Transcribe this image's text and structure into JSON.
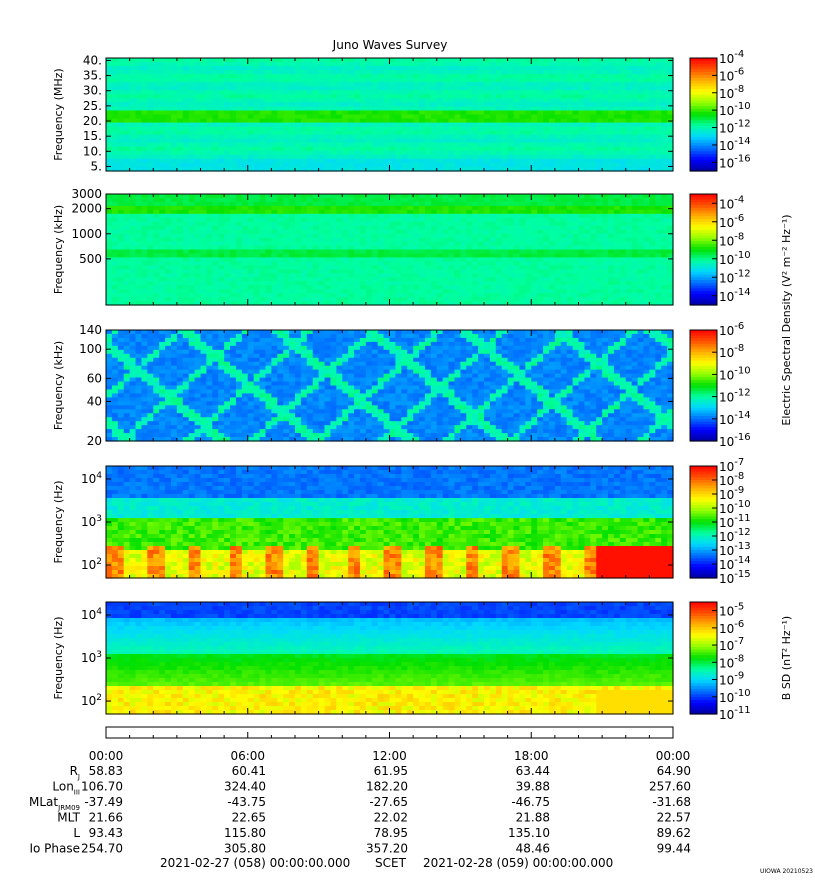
{
  "title": "Juno Waves Survey",
  "footer_mark": "UIOWA 20210523",
  "colormap": [
    "#0000a0",
    "#0000ff",
    "#0070ff",
    "#00d8ff",
    "#00ffa0",
    "#00e000",
    "#90ff00",
    "#ffff00",
    "#ffb000",
    "#ff5000",
    "#ff0000"
  ],
  "chart_data": [
    {
      "type": "heatmap",
      "name": "panel-hfr-high",
      "ylabel": "Frequency (MHz)",
      "yscale": "linear",
      "ylim": [
        3.5,
        40.8
      ],
      "yticks": [
        {
          "v": 5,
          "label": "5."
        },
        {
          "v": 10,
          "label": "10."
        },
        {
          "v": 15,
          "label": "15."
        },
        {
          "v": 20,
          "label": "20."
        },
        {
          "v": 25,
          "label": "25."
        },
        {
          "v": 30,
          "label": "30."
        },
        {
          "v": 35,
          "label": "35."
        },
        {
          "v": 40,
          "label": "40."
        }
      ],
      "colorbar": {
        "exp_range": [
          -17,
          -4
        ],
        "ticks": [
          {
            "v": -4,
            "label": "-4"
          },
          {
            "v": -6,
            "label": "-6"
          },
          {
            "v": -8,
            "label": "-8"
          },
          {
            "v": -10,
            "label": "-10"
          },
          {
            "v": -12,
            "label": "-12"
          },
          {
            "v": -14,
            "label": "-14"
          },
          {
            "v": -16,
            "label": "-16"
          }
        ],
        "label": ""
      }
    },
    {
      "type": "heatmap",
      "name": "panel-hfr-low",
      "ylabel": "Frequency (kHz)",
      "yscale": "log",
      "ylim": [
        140,
        3000
      ],
      "yticks": [
        {
          "v": 500,
          "label": "500"
        },
        {
          "v": 1000,
          "label": "1000"
        },
        {
          "v": 2000,
          "label": "2000"
        },
        {
          "v": 3000,
          "label": "3000"
        }
      ],
      "colorbar": {
        "exp_range": [
          -15,
          -3
        ],
        "ticks": [
          {
            "v": -4,
            "label": "-4"
          },
          {
            "v": -6,
            "label": "-6"
          },
          {
            "v": -8,
            "label": "-8"
          },
          {
            "v": -10,
            "label": "-10"
          },
          {
            "v": -12,
            "label": "-12"
          },
          {
            "v": -14,
            "label": "-14"
          }
        ],
        "label": "Electric Spectral Density (V² m⁻² Hz⁻¹)"
      }
    },
    {
      "type": "heatmap",
      "name": "panel-lfr",
      "ylabel": "Frequency (kHz)",
      "yscale": "log",
      "ylim": [
        20,
        140
      ],
      "yticks": [
        {
          "v": 20,
          "label": "20"
        },
        {
          "v": 40,
          "label": "40"
        },
        {
          "v": 60,
          "label": "60"
        },
        {
          "v": 100,
          "label": "100"
        },
        {
          "v": 140,
          "label": "140"
        }
      ],
      "colorbar": {
        "exp_range": [
          -16,
          -6
        ],
        "ticks": [
          {
            "v": -6,
            "label": "-6"
          },
          {
            "v": -8,
            "label": "-8"
          },
          {
            "v": -10,
            "label": "-10"
          },
          {
            "v": -12,
            "label": "-12"
          },
          {
            "v": -14,
            "label": "-14"
          },
          {
            "v": -16,
            "label": "-16"
          }
        ],
        "label": ""
      }
    },
    {
      "type": "heatmap",
      "name": "panel-e-low",
      "ylabel": "Frequency (Hz)",
      "yscale": "log",
      "ylim": [
        50,
        20000
      ],
      "yticks": [
        {
          "v": 100,
          "label": "10",
          "sup": "2"
        },
        {
          "v": 1000,
          "label": "10",
          "sup": "3"
        },
        {
          "v": 10000,
          "label": "10",
          "sup": "4"
        }
      ],
      "colorbar": {
        "exp_range": [
          -15,
          -7
        ],
        "ticks": [
          {
            "v": -7,
            "label": "-7"
          },
          {
            "v": -8,
            "label": "-8"
          },
          {
            "v": -9,
            "label": "-9"
          },
          {
            "v": -10,
            "label": "-10"
          },
          {
            "v": -11,
            "label": "-11"
          },
          {
            "v": -12,
            "label": "-12"
          },
          {
            "v": -13,
            "label": "-13"
          },
          {
            "v": -14,
            "label": "-14"
          },
          {
            "v": -15,
            "label": "-15"
          }
        ],
        "label": ""
      }
    },
    {
      "type": "heatmap",
      "name": "panel-b-low",
      "ylabel": "Frequency (Hz)",
      "yscale": "log",
      "ylim": [
        50,
        20000
      ],
      "yticks": [
        {
          "v": 100,
          "label": "10",
          "sup": "2"
        },
        {
          "v": 1000,
          "label": "10",
          "sup": "3"
        },
        {
          "v": 10000,
          "label": "10",
          "sup": "4"
        }
      ],
      "colorbar": {
        "exp_range": [
          -11,
          -4.5
        ],
        "ticks": [
          {
            "v": -5,
            "label": "-5"
          },
          {
            "v": -6,
            "label": "-6"
          },
          {
            "v": -7,
            "label": "-7"
          },
          {
            "v": -8,
            "label": "-8"
          },
          {
            "v": -9,
            "label": "-9"
          },
          {
            "v": -10,
            "label": "-10"
          },
          {
            "v": -11,
            "label": "-11"
          }
        ],
        "label": "B SD (nT² Hz⁻¹)"
      }
    }
  ],
  "time_axis": {
    "hours_range": [
      0,
      24
    ],
    "ticks": [
      {
        "h": 0,
        "label": "00:00"
      },
      {
        "h": 6,
        "label": "06:00"
      },
      {
        "h": 12,
        "label": "12:00"
      },
      {
        "h": 18,
        "label": "18:00"
      },
      {
        "h": 24,
        "label": "00:00"
      }
    ]
  },
  "ephemeris": [
    {
      "label": "R",
      "sub": "J",
      "values": [
        "58.83",
        "60.41",
        "61.95",
        "63.44",
        "64.90"
      ]
    },
    {
      "label": "Lon",
      "sub": "III",
      "values": [
        "106.70",
        "324.40",
        "182.20",
        "39.88",
        "257.60"
      ]
    },
    {
      "label": "MLat",
      "sub": "JRM09",
      "values": [
        "-37.49",
        "-43.75",
        "-27.65",
        "-46.75",
        "-31.68"
      ]
    },
    {
      "label": "MLT",
      "sub": "",
      "values": [
        "21.66",
        "22.65",
        "22.02",
        "21.88",
        "22.57"
      ]
    },
    {
      "label": "L",
      "sub": "",
      "values": [
        "93.43",
        "115.80",
        "78.95",
        "135.10",
        "89.62"
      ]
    },
    {
      "label": "Io Phase",
      "sub": "",
      "values": [
        "254.70",
        "305.80",
        "357.20",
        "48.46",
        "99.44"
      ]
    }
  ],
  "time_footer": {
    "start": "2021-02-27 (058) 00:00:00.000",
    "middle": "SCET",
    "end": "2021-02-28 (059) 00:00:00.000"
  }
}
